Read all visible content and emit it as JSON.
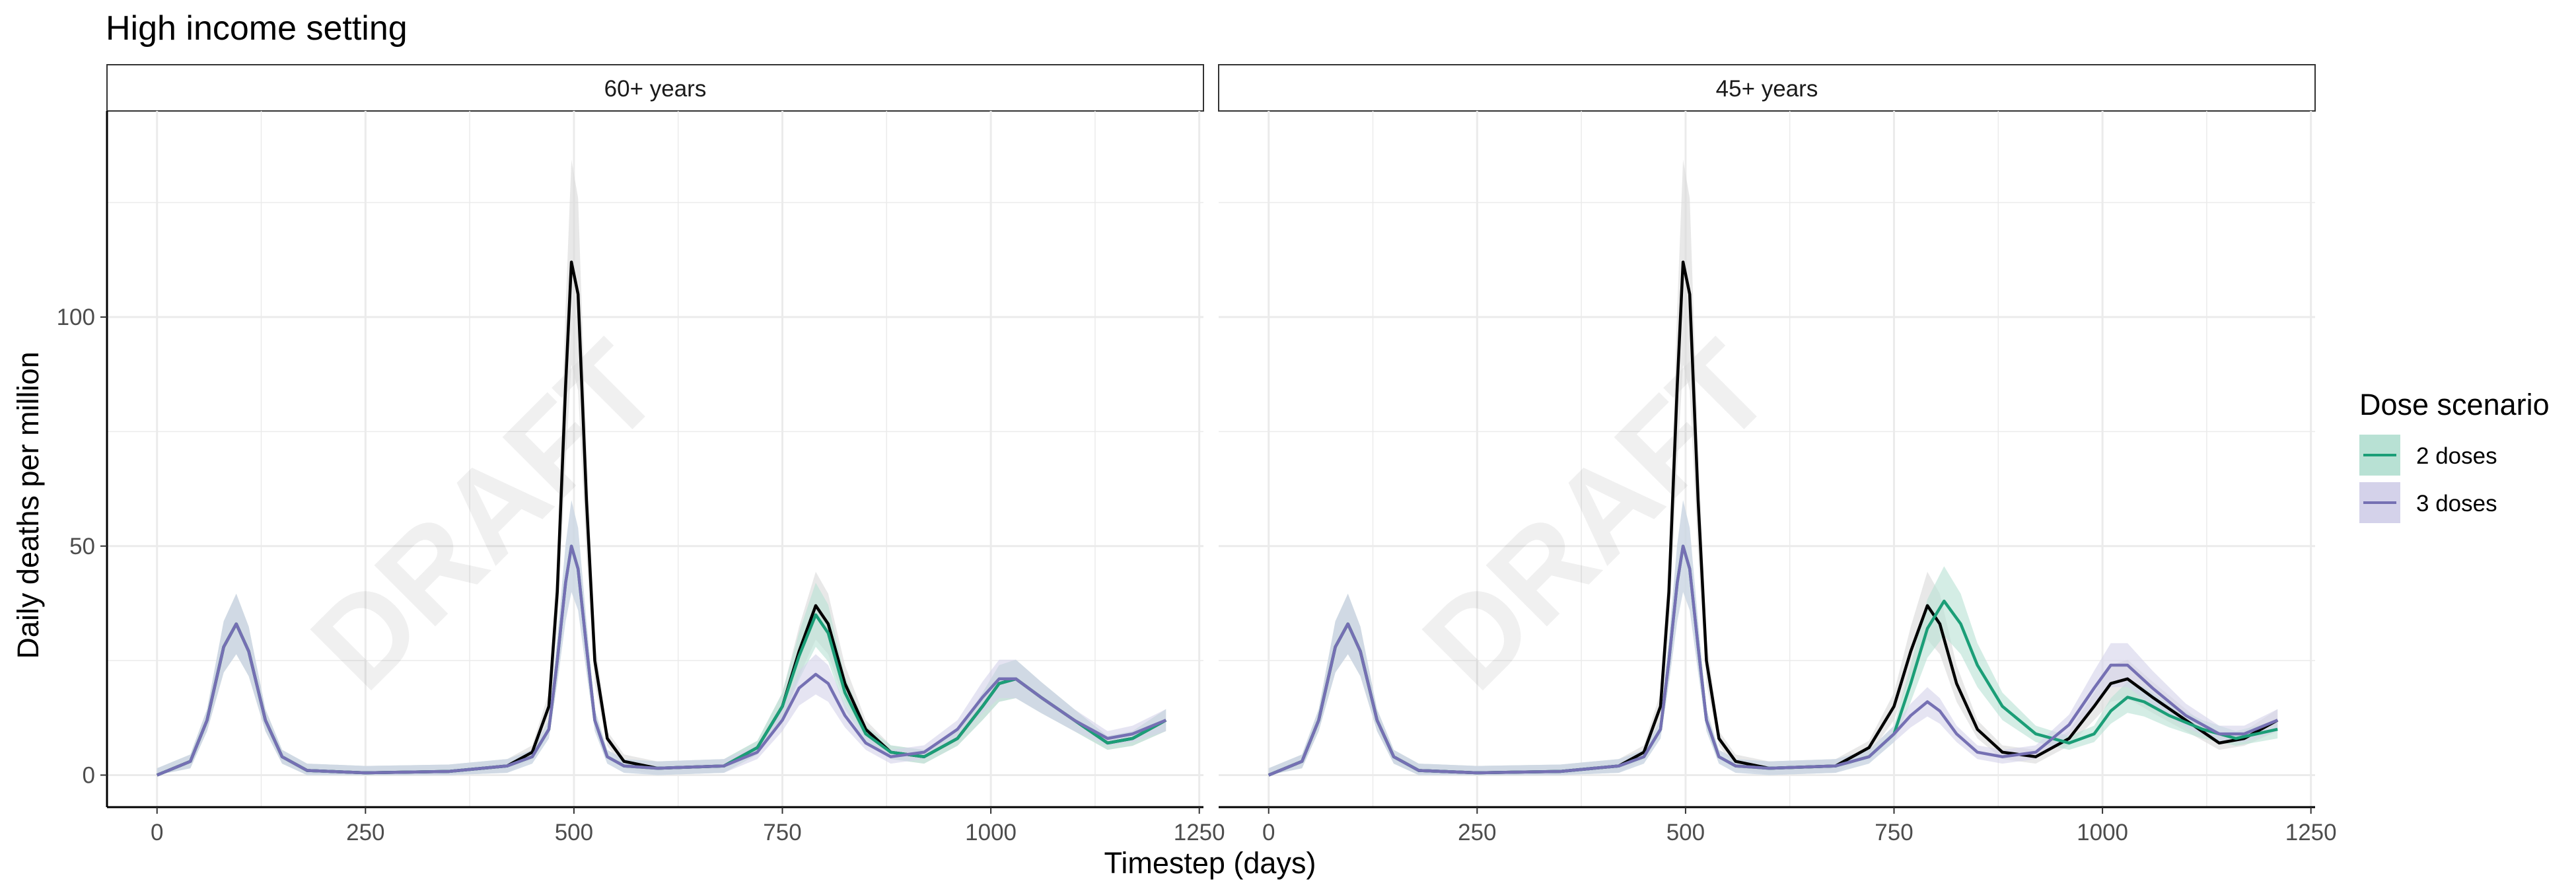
{
  "title": "High income setting",
  "xlabel": "Timestep (days)",
  "ylabel": "Daily deaths per million",
  "watermark": "DRAFT",
  "legend": {
    "title": "Dose scenario",
    "entries": [
      {
        "label": "2 doses",
        "color": "#1b9e77",
        "fill": "#b8e1d4"
      },
      {
        "label": "3 doses",
        "color": "#7570b3",
        "fill": "#d4d2ea"
      }
    ]
  },
  "colors": {
    "baseline": "#000000",
    "baseline_ribbon": "#d9d9d9",
    "two_doses": "#1b9e77",
    "three_doses": "#7570b3",
    "grid": "#ebebeb",
    "strip_border": "#333333"
  },
  "chart_data": {
    "type": "line",
    "xlim": [
      -60,
      1255
    ],
    "ylim": [
      -7,
      145
    ],
    "x_ticks": [
      0,
      250,
      500,
      750,
      1000,
      1250
    ],
    "y_ticks": [
      0,
      50,
      100
    ],
    "grid": true,
    "legend_position": "right",
    "panels": [
      {
        "label": "60+ years",
        "series": [
          {
            "name": "",
            "color": "#000000",
            "x": [
              0,
              40,
              60,
              80,
              95,
              110,
              130,
              150,
              180,
              250,
              350,
              420,
              450,
              470,
              480,
              490,
              497,
              505,
              515,
              525,
              540,
              560,
              600,
              680,
              720,
              750,
              770,
              790,
              805,
              825,
              850,
              880,
              920,
              960,
              990,
              1010,
              1030,
              1060,
              1100,
              1140,
              1170,
              1210
            ],
            "y": [
              0,
              3,
              12,
              28,
              33,
              27,
              12,
              4,
              1,
              0.5,
              0.8,
              2,
              5,
              15,
              40,
              85,
              112,
              105,
              60,
              25,
              8,
              3,
              1.5,
              2,
              6,
              15,
              27,
              37,
              33,
              20,
              10,
              5,
              4,
              8,
              15,
              20,
              21,
              17,
              12,
              7,
              8,
              12
            ]
          },
          {
            "name": "2 doses",
            "color": "#1b9e77",
            "x": [
              0,
              40,
              60,
              80,
              95,
              110,
              130,
              150,
              180,
              250,
              350,
              420,
              450,
              470,
              480,
              490,
              497,
              505,
              515,
              525,
              540,
              560,
              600,
              680,
              720,
              750,
              770,
              790,
              805,
              825,
              850,
              880,
              920,
              960,
              990,
              1010,
              1030,
              1060,
              1100,
              1140,
              1170,
              1210
            ],
            "y": [
              0,
              3,
              12,
              28,
              33,
              27,
              12,
              4,
              1,
              0.5,
              0.8,
              2,
              4,
              10,
              25,
              42,
              50,
              45,
              28,
              12,
              4,
              2,
              1.5,
              2,
              6,
              15,
              26,
              35,
              31,
              18,
              9,
              5,
              4,
              8,
              15,
              20,
              21,
              17,
              12,
              7,
              8,
              12
            ]
          },
          {
            "name": "3 doses",
            "color": "#7570b3",
            "x": [
              0,
              40,
              60,
              80,
              95,
              110,
              130,
              150,
              180,
              250,
              350,
              420,
              450,
              470,
              480,
              490,
              497,
              505,
              515,
              525,
              540,
              560,
              600,
              680,
              720,
              750,
              770,
              790,
              805,
              825,
              850,
              880,
              920,
              960,
              990,
              1010,
              1030,
              1060,
              1100,
              1140,
              1170,
              1210
            ],
            "y": [
              0,
              3,
              12,
              28,
              33,
              27,
              12,
              4,
              1,
              0.5,
              0.8,
              2,
              4,
              10,
              25,
              42,
              50,
              45,
              28,
              12,
              4,
              2,
              1.5,
              2,
              5,
              12,
              19,
              22,
              20,
              13,
              7,
              4,
              5,
              10,
              17,
              21,
              21,
              17,
              12,
              8,
              9,
              12
            ]
          }
        ]
      },
      {
        "label": "45+ years",
        "series": [
          {
            "name": "",
            "color": "#000000",
            "x": [
              0,
              40,
              60,
              80,
              95,
              110,
              130,
              150,
              180,
              250,
              350,
              420,
              450,
              470,
              480,
              490,
              497,
              505,
              515,
              525,
              540,
              560,
              600,
              680,
              720,
              750,
              770,
              790,
              805,
              825,
              850,
              880,
              920,
              960,
              990,
              1010,
              1030,
              1060,
              1100,
              1140,
              1170,
              1210
            ],
            "y": [
              0,
              3,
              12,
              28,
              33,
              27,
              12,
              4,
              1,
              0.5,
              0.8,
              2,
              5,
              15,
              40,
              85,
              112,
              105,
              60,
              25,
              8,
              3,
              1.5,
              2,
              6,
              15,
              27,
              37,
              33,
              20,
              10,
              5,
              4,
              8,
              15,
              20,
              21,
              17,
              12,
              7,
              8,
              12
            ]
          },
          {
            "name": "2 doses",
            "color": "#1b9e77",
            "x": [
              0,
              40,
              60,
              80,
              95,
              110,
              130,
              150,
              180,
              250,
              350,
              420,
              450,
              470,
              480,
              490,
              497,
              505,
              515,
              525,
              540,
              560,
              600,
              680,
              720,
              750,
              770,
              790,
              810,
              830,
              850,
              880,
              920,
              960,
              990,
              1010,
              1030,
              1050,
              1080,
              1120,
              1160,
              1210
            ],
            "y": [
              0,
              3,
              12,
              28,
              33,
              27,
              12,
              4,
              1,
              0.5,
              0.8,
              2,
              4,
              10,
              25,
              42,
              50,
              45,
              28,
              12,
              4,
              2,
              1.5,
              2,
              4,
              9,
              20,
              32,
              38,
              33,
              24,
              15,
              9,
              7,
              9,
              14,
              17,
              16,
              13,
              10,
              8,
              10
            ]
          },
          {
            "name": "3 doses",
            "color": "#7570b3",
            "x": [
              0,
              40,
              60,
              80,
              95,
              110,
              130,
              150,
              180,
              250,
              350,
              420,
              450,
              470,
              480,
              490,
              497,
              505,
              515,
              525,
              540,
              560,
              600,
              680,
              720,
              750,
              770,
              790,
              805,
              825,
              850,
              880,
              920,
              960,
              990,
              1010,
              1030,
              1060,
              1100,
              1140,
              1170,
              1210
            ],
            "y": [
              0,
              3,
              12,
              28,
              33,
              27,
              12,
              4,
              1,
              0.5,
              0.8,
              2,
              4,
              10,
              25,
              42,
              50,
              45,
              28,
              12,
              4,
              2,
              1.5,
              2,
              4,
              9,
              13,
              16,
              14,
              9,
              5,
              4,
              5,
              11,
              19,
              24,
              24,
              19,
              13,
              9,
              9,
              12
            ]
          }
        ]
      }
    ]
  }
}
